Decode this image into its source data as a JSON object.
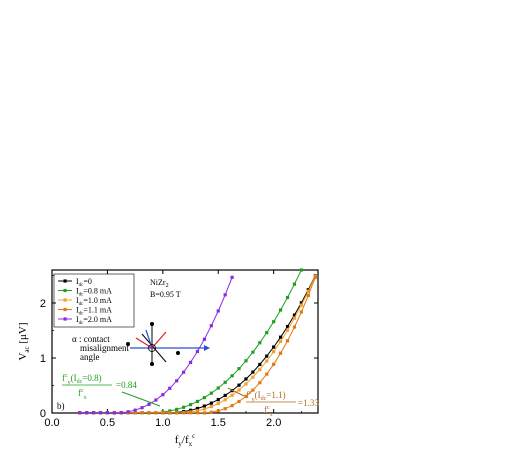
{
  "chart_data": {
    "type": "line",
    "xlabel": "f_y/f_x^c",
    "ylabel": "V_ac [μV]",
    "xlim": [
      0.0,
      2.4
    ],
    "ylim": [
      0.0,
      2.6
    ],
    "x_ticks": [
      "0.0",
      "0.5",
      "1.0",
      "1.5",
      "2.0"
    ],
    "y_ticks": [
      "0",
      "1",
      "2"
    ],
    "legend_position": "top-left",
    "legend": [
      {
        "label": "I_dc=0",
        "color": "#000000"
      },
      {
        "label": "I_dc=0.8 mA",
        "color": "#1fa01f"
      },
      {
        "label": "I_dc=1.0 mA",
        "color": "#f0a030"
      },
      {
        "label": "I_dc=1.1 mA",
        "color": "#e07a10"
      },
      {
        "label": "I_dc=2.0 mA",
        "color": "#8a2be2"
      }
    ],
    "series": [
      {
        "name": "I_dc=0",
        "color": "#000000",
        "shift": 1.0
      },
      {
        "name": "I_dc=0.8 mA",
        "color": "#1fa01f",
        "shift": 0.84
      },
      {
        "name": "I_dc=1.0 mA",
        "color": "#f0a030",
        "shift": 1.1
      },
      {
        "name": "I_dc=1.1 mA",
        "color": "#e07a10",
        "shift": 1.33
      },
      {
        "name": "I_dc=2.0 mA",
        "color": "#8a2be2",
        "shift": 0.55
      }
    ],
    "sample_text": "NiZr",
    "sample_sub": "2",
    "field_text": "B=0.95 T",
    "panel_label": "b)",
    "alpha_text": [
      "α : contact",
      "misalignment",
      "angle"
    ],
    "anno_left": {
      "line1": "f",
      "value": "=0.84"
    },
    "anno_right": {
      "line1": "f",
      "value": "=1.33"
    }
  }
}
